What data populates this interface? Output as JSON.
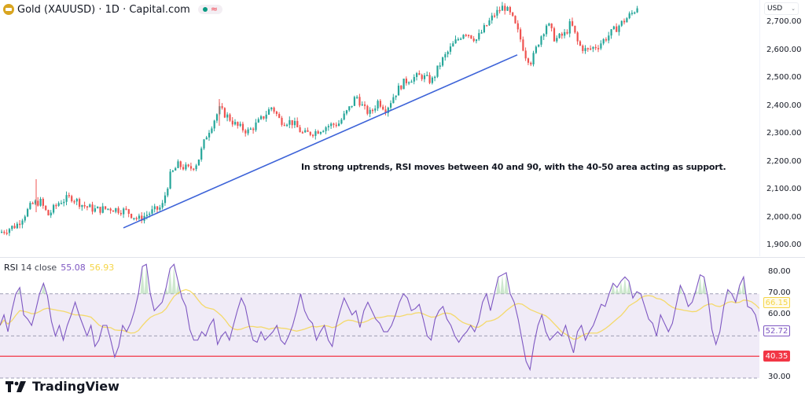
{
  "header": {
    "title": "Gold (XAUUSD) · 1D · Capital.com",
    "symbol_icon": "gold-bars-icon",
    "status_icons": [
      "market-open-dot-icon",
      "delayed-data-wave-icon"
    ]
  },
  "price_axis": {
    "currency": "USD",
    "ticks": [
      "2,700.00",
      "2,600.00",
      "2,500.00",
      "2,400.00",
      "2,300.00",
      "2,200.00",
      "2,100.00",
      "2,000.00",
      "1,900.00"
    ]
  },
  "rsi_panel": {
    "label": "RSI",
    "params": "14 close",
    "rsi_value": "55.08",
    "ma_value": "56.93",
    "ticks": [
      "80.00",
      "70.00",
      "60.00",
      "50.00",
      "30.00"
    ],
    "badges": {
      "ma": "66.15",
      "rsi": "52.72",
      "support_line": "40.35"
    }
  },
  "annotation": "In strong uptrends, RSI moves between 40 and 90, with the 40-50 area acting as support.",
  "branding": "TradingView",
  "colors": {
    "up": "#26a69a",
    "down": "#ef5350",
    "trendline": "#3d63d8",
    "rsi": "#7e57c2",
    "rsi_ma": "#f5d547",
    "rsi_band": "#7e57c2",
    "support_line": "#f23645"
  },
  "chart_data": [
    {
      "type": "candlestick",
      "title": "Gold (XAUUSD) · 1D · Capital.com",
      "ylabel": "USD",
      "ylim": [
        1870,
        2760
      ],
      "y_ticks": [
        1900,
        2000,
        2100,
        2200,
        2300,
        2400,
        2500,
        2600,
        2700
      ],
      "close_path": [
        {
          "x": 0,
          "y": 1950
        },
        {
          "x": 20,
          "y": 1975
        },
        {
          "x": 40,
          "y": 2050
        },
        {
          "x": 50,
          "y": 2060
        },
        {
          "x": 60,
          "y": 2010
        },
        {
          "x": 75,
          "y": 2060
        },
        {
          "x": 90,
          "y": 2075
        },
        {
          "x": 105,
          "y": 2045
        },
        {
          "x": 120,
          "y": 2030
        },
        {
          "x": 140,
          "y": 2035
        },
        {
          "x": 160,
          "y": 2025
        },
        {
          "x": 175,
          "y": 1995
        },
        {
          "x": 190,
          "y": 2020
        },
        {
          "x": 205,
          "y": 2040
        },
        {
          "x": 215,
          "y": 2150
        },
        {
          "x": 225,
          "y": 2190
        },
        {
          "x": 240,
          "y": 2175
        },
        {
          "x": 250,
          "y": 2200
        },
        {
          "x": 262,
          "y": 2300
        },
        {
          "x": 278,
          "y": 2390
        },
        {
          "x": 290,
          "y": 2360
        },
        {
          "x": 300,
          "y": 2330
        },
        {
          "x": 315,
          "y": 2310
        },
        {
          "x": 330,
          "y": 2350
        },
        {
          "x": 345,
          "y": 2400
        },
        {
          "x": 355,
          "y": 2350
        },
        {
          "x": 370,
          "y": 2345
        },
        {
          "x": 385,
          "y": 2300
        },
        {
          "x": 400,
          "y": 2310
        },
        {
          "x": 415,
          "y": 2330
        },
        {
          "x": 430,
          "y": 2340
        },
        {
          "x": 445,
          "y": 2400
        },
        {
          "x": 452,
          "y": 2440
        },
        {
          "x": 462,
          "y": 2390
        },
        {
          "x": 470,
          "y": 2375
        },
        {
          "x": 480,
          "y": 2420
        },
        {
          "x": 490,
          "y": 2390
        },
        {
          "x": 500,
          "y": 2440
        },
        {
          "x": 510,
          "y": 2480
        },
        {
          "x": 520,
          "y": 2500
        },
        {
          "x": 535,
          "y": 2510
        },
        {
          "x": 548,
          "y": 2490
        },
        {
          "x": 560,
          "y": 2560
        },
        {
          "x": 575,
          "y": 2620
        },
        {
          "x": 590,
          "y": 2670
        },
        {
          "x": 605,
          "y": 2640
        },
        {
          "x": 615,
          "y": 2680
        },
        {
          "x": 628,
          "y": 2730
        },
        {
          "x": 640,
          "y": 2760
        },
        {
          "x": 650,
          "y": 2720
        },
        {
          "x": 660,
          "y": 2650
        },
        {
          "x": 668,
          "y": 2580
        },
        {
          "x": 675,
          "y": 2560
        },
        {
          "x": 685,
          "y": 2640
        },
        {
          "x": 695,
          "y": 2700
        },
        {
          "x": 705,
          "y": 2640
        },
        {
          "x": 718,
          "y": 2660
        },
        {
          "x": 725,
          "y": 2700
        },
        {
          "x": 735,
          "y": 2620
        },
        {
          "x": 745,
          "y": 2600
        },
        {
          "x": 760,
          "y": 2620
        },
        {
          "x": 775,
          "y": 2660
        },
        {
          "x": 790,
          "y": 2700
        },
        {
          "x": 805,
          "y": 2740
        },
        {
          "x": 812,
          "y": 2770
        }
      ],
      "trendline": {
        "from": {
          "x": 157,
          "y": 1965
        },
        "to": {
          "x": 658,
          "y": 2585
        }
      }
    },
    {
      "type": "line",
      "title": "RSI 14 close",
      "ylim": [
        27,
        85
      ],
      "y_ticks": [
        30,
        50,
        60,
        70,
        80
      ],
      "bands": {
        "upper": 70,
        "lower": 50
      },
      "horizontal_line": {
        "value": 40.35,
        "label": "40.35"
      },
      "series": [
        {
          "name": "RSI",
          "last_value": 52.72,
          "legend_value": 55.08,
          "values": [
            55,
            60,
            52,
            62,
            70,
            73,
            60,
            58,
            55,
            62,
            70,
            75,
            69,
            57,
            50,
            55,
            48,
            55,
            60,
            66,
            60,
            55,
            50,
            55,
            45,
            48,
            55,
            55,
            48,
            40,
            45,
            55,
            52,
            56,
            62,
            70,
            83,
            84,
            70,
            62,
            64,
            66,
            73,
            82,
            84,
            76,
            68,
            64,
            53,
            48,
            48,
            52,
            50,
            55,
            58,
            46,
            50,
            52,
            48,
            55,
            62,
            68,
            64,
            55,
            48,
            47,
            52,
            48,
            50,
            52,
            55,
            48,
            46,
            50,
            55,
            62,
            70,
            62,
            58,
            56,
            48,
            52,
            55,
            48,
            45,
            55,
            62,
            68,
            64,
            60,
            62,
            54,
            62,
            66,
            62,
            58,
            56,
            52,
            52,
            55,
            60,
            66,
            70,
            68,
            62,
            63,
            65,
            58,
            50,
            48,
            58,
            62,
            64,
            58,
            55,
            50,
            47,
            50,
            52,
            55,
            52,
            57,
            66,
            70,
            62,
            70,
            78,
            79,
            80,
            70,
            66,
            58,
            48,
            38,
            34,
            46,
            55,
            60,
            52,
            48,
            50,
            52,
            50,
            55,
            48,
            42,
            52,
            55,
            48,
            52,
            55,
            60,
            65,
            64,
            70,
            75,
            73,
            76,
            78,
            76,
            68,
            71,
            70,
            64,
            58,
            56,
            50,
            60,
            56,
            52,
            56,
            65,
            74,
            70,
            64,
            66,
            72,
            79,
            78,
            68,
            53,
            46,
            52,
            64,
            72,
            70,
            66,
            74,
            78,
            64,
            63,
            60,
            52
          ]
        },
        {
          "name": "RSI-based MA",
          "last_value": 66.15,
          "legend_value": 56.93
        }
      ]
    }
  ]
}
